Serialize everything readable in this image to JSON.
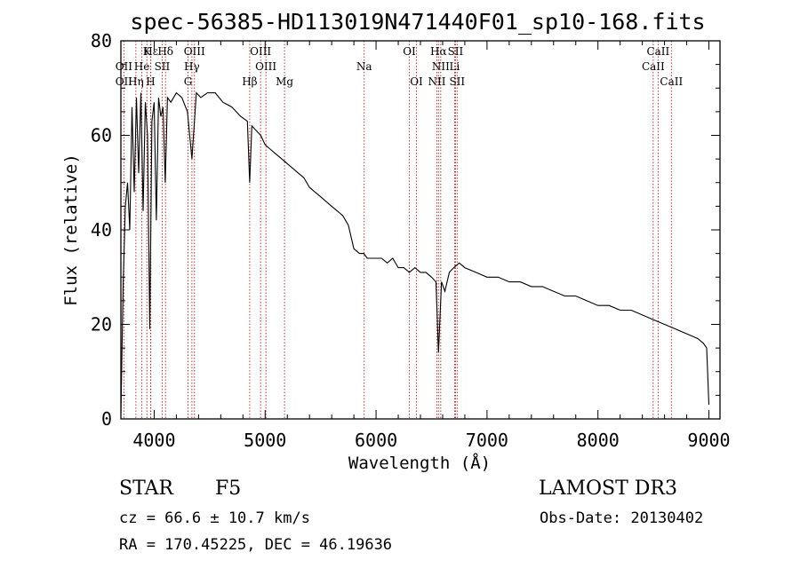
{
  "chart_data": {
    "type": "line",
    "title": "spec-56385-HD113019N471440F01_sp10-168.fits",
    "xlabel": "Wavelength (Å)",
    "ylabel": "Flux (relative)",
    "xlim": [
      3700,
      9100
    ],
    "ylim": [
      0,
      80
    ],
    "xticks": [
      4000,
      5000,
      6000,
      7000,
      8000,
      9000
    ],
    "yticks": [
      0,
      20,
      40,
      60,
      80
    ],
    "series": [
      {
        "name": "spectrum",
        "x": [
          3700,
          3720,
          3740,
          3760,
          3780,
          3800,
          3820,
          3840,
          3860,
          3880,
          3900,
          3920,
          3940,
          3960,
          3980,
          4000,
          4020,
          4040,
          4060,
          4080,
          4100,
          4120,
          4150,
          4200,
          4250,
          4300,
          4340,
          4380,
          4420,
          4480,
          4550,
          4620,
          4700,
          4780,
          4840,
          4861,
          4880,
          4920,
          4960,
          5000,
          5050,
          5100,
          5150,
          5200,
          5250,
          5300,
          5350,
          5400,
          5450,
          5500,
          5550,
          5600,
          5650,
          5700,
          5750,
          5800,
          5850,
          5890,
          5920,
          5950,
          6000,
          6050,
          6100,
          6150,
          6200,
          6250,
          6300,
          6350,
          6400,
          6450,
          6500,
          6540,
          6563,
          6590,
          6620,
          6660,
          6700,
          6750,
          6800,
          6900,
          7000,
          7100,
          7200,
          7300,
          7400,
          7500,
          7600,
          7700,
          7800,
          7900,
          8000,
          8100,
          8200,
          8300,
          8400,
          8500,
          8600,
          8700,
          8800,
          8900,
          8950,
          8980,
          9000
        ],
        "y": [
          1,
          28,
          45,
          50,
          40,
          66,
          48,
          68,
          52,
          69,
          44,
          67,
          60,
          19,
          63,
          67,
          42,
          68,
          64,
          66,
          50,
          68,
          67,
          69,
          68,
          65,
          55,
          69,
          68,
          69,
          69,
          67,
          66,
          64,
          63,
          50,
          62,
          61,
          60,
          58,
          57,
          56,
          55,
          54,
          53,
          52,
          51,
          49,
          48,
          47,
          46,
          45,
          44,
          43,
          41,
          36,
          35,
          35,
          34,
          34,
          34,
          34,
          33,
          34,
          32,
          32,
          31,
          32,
          31,
          31,
          30,
          29,
          14,
          29,
          27,
          31,
          32,
          33,
          32,
          31,
          30,
          30,
          29,
          29,
          28,
          28,
          27,
          26,
          26,
          25,
          24,
          24,
          23,
          23,
          22,
          21,
          20,
          19,
          18,
          17,
          16,
          15,
          3
        ]
      }
    ],
    "line_markers": [
      {
        "label": "Hε",
        "wavelength": 3970,
        "row": 1
      },
      {
        "label": "K",
        "wavelength": 3934,
        "row": 1
      },
      {
        "label": "Hδ",
        "wavelength": 4102,
        "row": 1
      },
      {
        "label": "OIII",
        "wavelength": 4363,
        "row": 1
      },
      {
        "label": "OIII",
        "wavelength": 4959,
        "row": 1
      },
      {
        "label": "OI",
        "wavelength": 6300,
        "row": 1
      },
      {
        "label": "Hα",
        "wavelength": 6563,
        "row": 1
      },
      {
        "label": "SII",
        "wavelength": 6716,
        "row": 1
      },
      {
        "label": "CaII",
        "wavelength": 8542,
        "row": 1
      },
      {
        "label": "OII",
        "wavelength": 3727,
        "row": 2
      },
      {
        "label": "He",
        "wavelength": 3889,
        "row": 2
      },
      {
        "label": "SII",
        "wavelength": 4072,
        "row": 2
      },
      {
        "label": "Hγ",
        "wavelength": 4340,
        "row": 2
      },
      {
        "label": "OIII",
        "wavelength": 5007,
        "row": 2
      },
      {
        "label": "Na",
        "wavelength": 5893,
        "row": 2
      },
      {
        "label": "NII",
        "wavelength": 6583,
        "row": 2
      },
      {
        "label": "Li",
        "wavelength": 6708,
        "row": 2
      },
      {
        "label": "CaII",
        "wavelength": 8498,
        "row": 2
      },
      {
        "label": "OII",
        "wavelength": 3727,
        "row": 3
      },
      {
        "label": "Hη",
        "wavelength": 3835,
        "row": 3
      },
      {
        "label": "H",
        "wavelength": 3968,
        "row": 3
      },
      {
        "label": "G",
        "wavelength": 4305,
        "row": 3
      },
      {
        "label": "Hβ",
        "wavelength": 4861,
        "row": 3
      },
      {
        "label": "Mg",
        "wavelength": 5175,
        "row": 3
      },
      {
        "label": "OI",
        "wavelength": 6364,
        "row": 3
      },
      {
        "label": "NII",
        "wavelength": 6548,
        "row": 3
      },
      {
        "label": "SII",
        "wavelength": 6731,
        "row": 3
      },
      {
        "label": "CaII",
        "wavelength": 8662,
        "row": 3
      }
    ]
  },
  "info": {
    "class": "STAR",
    "subclass": "F5",
    "survey": "LAMOST DR3",
    "cz": "cz = 66.6 ± 10.7 km/s",
    "obs_date": "Obs-Date: 20130402",
    "radec": "RA = 170.45225, DEC =  46.19636"
  },
  "colors": {
    "line_marker": "#b22222",
    "spectrum": "#000000",
    "axis": "#000000"
  }
}
